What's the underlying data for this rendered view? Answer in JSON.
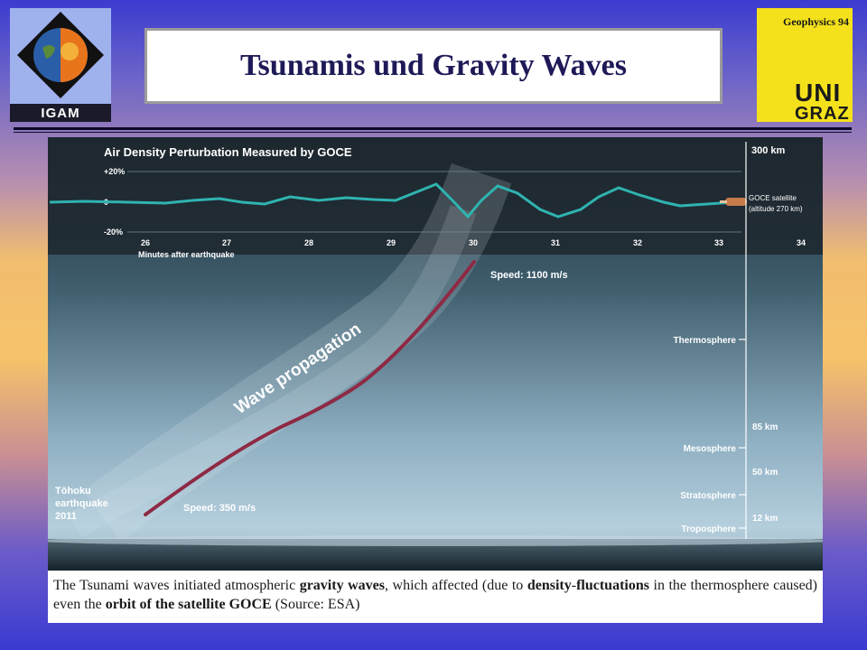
{
  "header": {
    "title": "Tsunamis und Gravity Waves",
    "logo_left_label": "IGAM",
    "course_label": "Geophysics 94",
    "logo_right_line1": "UNI",
    "logo_right_line2": "GRAZ"
  },
  "figure": {
    "title": "Air Density Perturbation Measured by GOCE",
    "y_ticks": [
      "+20%",
      "0",
      "-20%"
    ],
    "x_ticks": [
      "26",
      "27",
      "28",
      "29",
      "30",
      "31",
      "32",
      "33",
      "34"
    ],
    "x_label": "Minutes after earthquake",
    "satellite_label_1": "GOCE satellite",
    "satellite_label_2": "(altitude 270 km)",
    "altitude_top": "300 km",
    "layers": [
      "Thermosphere",
      "Mesosphere",
      "Stratosphere",
      "Troposphere"
    ],
    "altitudes": [
      "85 km",
      "50 km",
      "12 km"
    ],
    "wave_label": "Wave propagation",
    "speed_top": "Speed: 1100 m/s",
    "speed_bottom": "Speed: 350 m/s",
    "quake_1": "Tōhoku",
    "quake_2": "earthquake",
    "quake_3": "2011"
  },
  "caption": {
    "p1": "The Tsunami waves initiated atmospheric ",
    "b1": "gravity waves",
    "p2": ", which affected (due to ",
    "b2": "density",
    "p3": "-",
    "b3": "fluctuations",
    "p4": " in the thermosphere caused) even the ",
    "b4": "orbit of the satellite GOCE",
    "p5": " (Source: ESA)"
  },
  "colors": {
    "title_text": "#1e1a58",
    "curve": "#2fb3b0",
    "wave_path": "#8e2a44",
    "badge_yellow": "#f4e11b"
  }
}
